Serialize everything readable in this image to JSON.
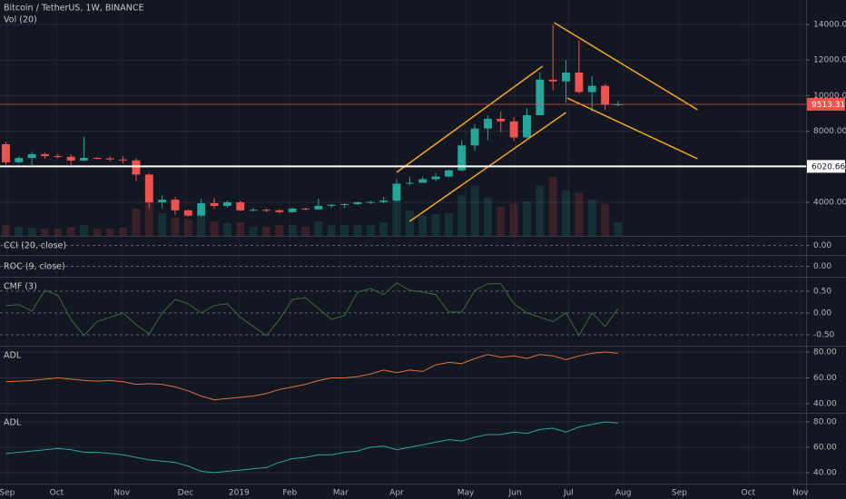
{
  "chart_data": [
    {
      "type": "candlestick",
      "title": "Bitcoin / TetherUS, 1W, BINANCE",
      "subtitle": "Vol (20)",
      "x": [
        0,
        1,
        2,
        3,
        4,
        5,
        6,
        7,
        8,
        9,
        10,
        11,
        12,
        13,
        14,
        15,
        16,
        17,
        18,
        19,
        20,
        21,
        22,
        23,
        24,
        25,
        26,
        27,
        28,
        29,
        30,
        31,
        32,
        33,
        34,
        35,
        36,
        37,
        38,
        39,
        40,
        41,
        42,
        43,
        44,
        45,
        46,
        47
      ],
      "open": [
        7270,
        6250,
        6490,
        6710,
        6600,
        6560,
        6350,
        6500,
        6470,
        6410,
        6360,
        5560,
        4000,
        4150,
        3550,
        3250,
        3950,
        3800,
        4000,
        3550,
        3580,
        3550,
        3450,
        3650,
        3600,
        3800,
        3860,
        3900,
        4000,
        4020,
        4100,
        5050,
        5100,
        5300,
        5450,
        5800,
        7200,
        8150,
        8700,
        8550,
        7650,
        8900,
        10900,
        10800,
        11300,
        10200,
        10550,
        9500
      ],
      "high": [
        7410,
        6590,
        6830,
        6800,
        6720,
        6700,
        7680,
        6540,
        6600,
        6600,
        6480,
        5650,
        4400,
        4300,
        3600,
        4200,
        4250,
        4100,
        4100,
        3700,
        3650,
        3600,
        3700,
        3700,
        4200,
        3900,
        3950,
        4050,
        4100,
        4300,
        5300,
        5450,
        5450,
        5650,
        5850,
        7500,
        8400,
        8900,
        9100,
        8800,
        9300,
        11300,
        13970,
        12000,
        13100,
        11100,
        10650,
        9700
      ],
      "low": [
        6110,
        6170,
        6100,
        6440,
        6460,
        6100,
        6300,
        6400,
        6300,
        6180,
        5200,
        3650,
        3650,
        3300,
        3200,
        3200,
        3650,
        3700,
        3500,
        3500,
        3450,
        3350,
        3400,
        3550,
        3600,
        3700,
        3700,
        3850,
        3900,
        3950,
        4050,
        4950,
        5100,
        5200,
        5400,
        5750,
        6900,
        7500,
        7950,
        7450,
        7600,
        8900,
        10300,
        9600,
        10100,
        9100,
        9200,
        9400
      ],
      "close": [
        6250,
        6490,
        6710,
        6600,
        6560,
        6350,
        6500,
        6470,
        6410,
        6360,
        5560,
        4000,
        4150,
        3550,
        3250,
        3950,
        3800,
        4000,
        3550,
        3580,
        3550,
        3450,
        3650,
        3600,
        3800,
        3860,
        3900,
        4000,
        4020,
        4100,
        5050,
        5100,
        5300,
        5450,
        5800,
        7200,
        8150,
        8700,
        8550,
        7650,
        8900,
        10900,
        10800,
        11300,
        10200,
        10550,
        9500,
        9513.31
      ],
      "volume": [
        12,
        10,
        9,
        8,
        8,
        10,
        12,
        8,
        8,
        9,
        30,
        38,
        25,
        20,
        18,
        22,
        16,
        14,
        15,
        10,
        10,
        12,
        12,
        10,
        16,
        12,
        12,
        12,
        12,
        15,
        40,
        28,
        22,
        24,
        25,
        45,
        55,
        42,
        32,
        35,
        38,
        55,
        65,
        50,
        48,
        40,
        35,
        15
      ],
      "vlim": [
        0,
        100
      ],
      "colors": {
        "up": "#26a69a",
        "down": "#ef5350"
      },
      "xlim": [
        -0.45,
        61.43
      ],
      "xticks": [
        {
          "value": 0.1,
          "label": "Sep"
        },
        {
          "value": 3.9,
          "label": "Oct"
        },
        {
          "value": 8.9,
          "label": "Nov"
        },
        {
          "value": 13.8,
          "label": "Dec"
        },
        {
          "value": 17.9,
          "label": "2019"
        },
        {
          "value": 21.8,
          "label": "Feb"
        },
        {
          "value": 25.7,
          "label": "Mar"
        },
        {
          "value": 30,
          "label": "Apr"
        },
        {
          "value": 35.3,
          "label": "May"
        },
        {
          "value": 39.1,
          "label": "Jun"
        },
        {
          "value": 43.2,
          "label": "Jul"
        },
        {
          "value": 47.4,
          "label": "Aug"
        },
        {
          "value": 51.7,
          "label": "Sep"
        },
        {
          "value": 57,
          "label": "Oct"
        },
        {
          "value": 61,
          "label": "Nov"
        }
      ],
      "ylim": [
        2112,
        15378
      ],
      "yticks": [
        {
          "value": 4000,
          "label": "4000.00"
        },
        {
          "value": 6000,
          "label": "6000.00"
        },
        {
          "value": 8000,
          "label": "8000.00"
        },
        {
          "value": 10000,
          "label": "10000.00"
        },
        {
          "value": 12000,
          "label": "12000.00"
        },
        {
          "value": 14000,
          "label": "14000.00"
        }
      ],
      "grid": true,
      "price_lines": [
        {
          "value": 9513.31,
          "color": "#ef5350"
        },
        {
          "value": 6020.66,
          "color": "#ffffff"
        }
      ],
      "drawings": [
        {
          "color": "#f5a623",
          "points": [
            [
              30,
              5684
            ],
            [
              41.2,
              11653
            ]
          ]
        },
        {
          "color": "#f5a623",
          "points": [
            [
              31,
              2929
            ],
            [
              43,
              9051
            ]
          ]
        },
        {
          "color": "#f5a623",
          "points": [
            [
              42.1,
              14102
            ],
            [
              53.1,
              9204
            ]
          ]
        },
        {
          "color": "#f5a623",
          "points": [
            [
              43.1,
              9867
            ],
            [
              53.1,
              6449
            ]
          ]
        }
      ]
    },
    {
      "type": "line",
      "title": "CCI (20, close)",
      "ylim": [
        -1,
        1
      ],
      "yticks": [
        {
          "value": 0,
          "label": "0.00"
        }
      ],
      "grid": "dashed"
    },
    {
      "type": "line",
      "title": "ROC (9, close)",
      "ylim": [
        -1,
        1
      ],
      "yticks": [
        {
          "value": 0,
          "label": "0.00"
        }
      ],
      "grid": "dashed"
    },
    {
      "type": "line",
      "title": "CMF (3)",
      "ylim": [
        -0.73,
        0.81
      ],
      "yticks": [
        {
          "value": 0.5,
          "label": "0.50"
        },
        {
          "value": 0,
          "label": "0.00"
        },
        {
          "value": -0.5,
          "label": "-0.50"
        }
      ],
      "grid": "dashed",
      "series": [
        {
          "color": "#3f6b3c",
          "values": [
            0.17,
            0.19,
            0.04,
            0.52,
            0.4,
            -0.15,
            -0.52,
            -0.2,
            -0.1,
            0,
            -0.27,
            -0.48,
            0,
            0.31,
            0.21,
            0,
            0.17,
            0.21,
            -0.1,
            -0.31,
            -0.52,
            -0.15,
            0.31,
            0.35,
            0.1,
            -0.15,
            -0.06,
            0.48,
            0.56,
            0.42,
            0.69,
            0.52,
            0.48,
            0.42,
            0.02,
            0.02,
            0.52,
            0.67,
            0.67,
            0.21,
            0,
            -0.1,
            -0.2,
            0,
            -0.52,
            0,
            -0.31,
            0.1
          ]
        }
      ]
    },
    {
      "type": "line",
      "title": "ADL",
      "ylim": [
        33.7,
        84.2
      ],
      "yticks": [
        {
          "value": 40,
          "label": "40.00"
        },
        {
          "value": 60,
          "label": "60.00"
        },
        {
          "value": 80,
          "label": "80.00"
        }
      ],
      "grid": true,
      "series": [
        {
          "color": "#e0733a",
          "values": [
            57,
            57.5,
            58,
            59,
            60,
            59,
            58,
            57.5,
            58,
            57,
            55,
            55.5,
            55,
            53,
            50,
            46,
            43,
            44,
            45,
            46,
            48,
            51,
            53,
            55,
            58,
            60,
            60,
            61,
            63,
            66,
            64,
            66,
            65,
            70,
            72,
            71,
            75,
            78,
            76,
            77,
            75,
            78,
            77,
            74,
            77,
            79,
            80,
            79
          ]
        }
      ]
    },
    {
      "type": "line",
      "title": "ADL",
      "ylim": [
        32.1,
        86.4
      ],
      "yticks": [
        {
          "value": 40,
          "label": "40.00"
        },
        {
          "value": 60,
          "label": "60.00"
        },
        {
          "value": 80,
          "label": "80.00"
        }
      ],
      "grid": true,
      "series": [
        {
          "color": "#26a69a",
          "values": [
            55,
            56,
            57,
            58,
            59,
            58,
            56,
            56,
            55,
            54,
            52,
            50,
            49,
            48,
            45,
            41,
            40,
            41,
            42,
            43,
            44,
            48,
            51,
            52,
            54,
            54,
            56,
            57,
            60,
            61,
            58,
            60,
            62,
            64,
            66,
            65,
            68,
            70,
            70,
            72,
            71,
            74,
            75,
            72,
            76,
            78,
            80,
            79
          ]
        }
      ]
    }
  ]
}
